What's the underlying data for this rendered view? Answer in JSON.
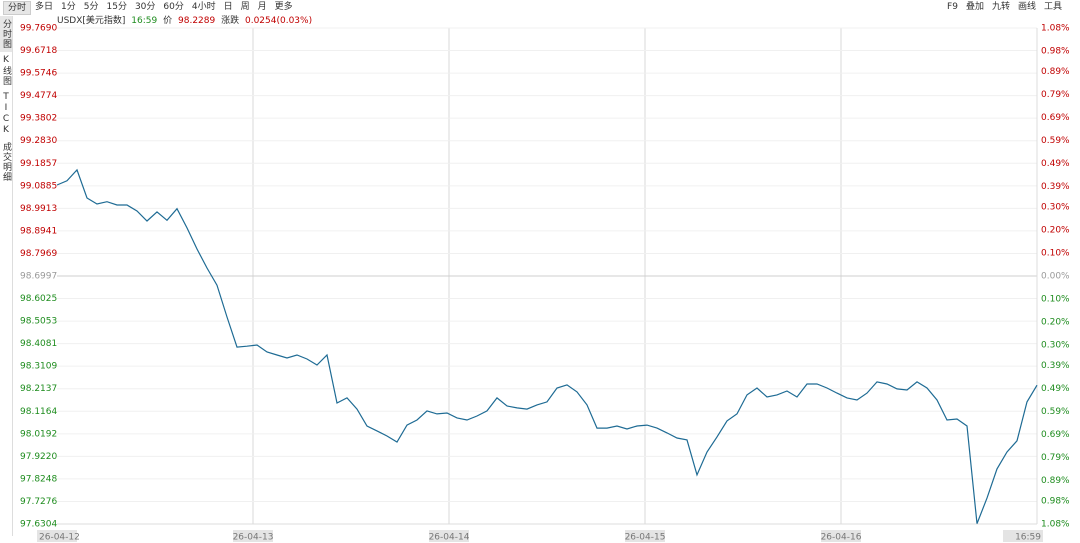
{
  "toolbar": {
    "left": [
      "分时",
      "多日",
      "1分",
      "5分",
      "15分",
      "30分",
      "60分",
      "4小时",
      "日",
      "周",
      "月",
      "更多"
    ],
    "right": [
      "F9",
      "叠加",
      "九转",
      "画线",
      "工具"
    ]
  },
  "sidebar": [
    "分时图",
    "K线图",
    "TICK",
    "成交明细"
  ],
  "info": {
    "symbol": "USDX[美元指数]",
    "time": "16:59",
    "price_label": "价",
    "price": "98.2289",
    "change_label": "涨跌",
    "change": "0.0254(0.03%)"
  },
  "chart_data": {
    "type": "line",
    "xtick_labels": [
      "26-04-12",
      "26-04-13",
      "26-04-14",
      "26-04-15",
      "26-04-16",
      "16:59"
    ],
    "series": [
      {
        "color": "#1e6b94",
        "values": [
          99.092,
          99.11,
          99.157,
          99.036,
          99.01,
          99.02,
          99.006,
          99.006,
          98.98,
          98.937,
          98.976,
          98.94,
          98.99,
          98.907,
          98.816,
          98.734,
          98.66,
          98.523,
          98.393,
          98.397,
          98.402,
          98.372,
          98.359,
          98.346,
          98.359,
          98.342,
          98.316,
          98.359,
          98.152,
          98.174,
          98.126,
          98.053,
          98.032,
          98.01,
          97.984,
          98.057,
          98.079,
          98.118,
          98.105,
          98.109,
          98.088,
          98.079,
          98.096,
          98.118,
          98.174,
          98.139,
          98.131,
          98.126,
          98.144,
          98.157,
          98.217,
          98.23,
          98.2,
          98.144,
          98.044,
          98.044,
          98.053,
          98.04,
          98.053,
          98.057,
          98.044,
          98.023,
          98.001,
          97.993,
          97.842,
          97.941,
          98.006,
          98.075,
          98.105,
          98.187,
          98.217,
          98.178,
          98.187,
          98.204,
          98.178,
          98.234,
          98.234,
          98.217,
          98.195,
          98.174,
          98.165,
          98.195,
          98.243,
          98.234,
          98.213,
          98.208,
          98.243,
          98.217,
          98.165,
          98.079,
          98.083,
          98.053,
          97.632,
          97.742,
          97.868,
          97.941,
          97.989,
          98.157,
          98.229
        ]
      }
    ],
    "ylim": [
      97.6304,
      99.769
    ],
    "yticks": [
      {
        "value": 99.769,
        "label": "99.7690"
      },
      99.6718,
      99.5746,
      99.4774,
      99.3802,
      {
        "value": 99.283,
        "label": "99.2830"
      },
      99.1857,
      99.0885,
      98.9913,
      98.8941,
      98.7969,
      98.6997,
      98.6025,
      98.5053,
      98.4081,
      98.3109,
      98.2137,
      98.1164,
      98.0192,
      {
        "value": 97.922,
        "label": "97.9220"
      },
      97.8248,
      97.7276,
      97.6304
    ],
    "y2lim": [
      -1.08,
      1.08
    ],
    "y2ticks": [
      {
        "value": 1.08,
        "label": "1.08%"
      },
      {
        "value": 0.98,
        "label": "0.98%"
      },
      {
        "value": 0.89,
        "label": "0.89%"
      },
      {
        "value": 0.79,
        "label": "0.79%"
      },
      {
        "value": 0.69,
        "label": "0.69%"
      },
      {
        "value": 0.59,
        "label": "0.59%"
      },
      {
        "value": 0.49,
        "label": "0.49%"
      },
      {
        "value": 0.39,
        "label": "0.39%"
      },
      {
        "value": 0.3,
        "label": "0.30%"
      },
      {
        "value": 0.2,
        "label": "0.20%"
      },
      {
        "value": 0.1,
        "label": "0.10%"
      },
      {
        "value": 0,
        "label": "0.00%"
      },
      {
        "value": -0.1,
        "label": "0.10%"
      },
      {
        "value": -0.2,
        "label": "0.20%"
      },
      {
        "value": -0.3,
        "label": "0.30%"
      },
      {
        "value": -0.39,
        "label": "0.39%"
      },
      {
        "value": -0.49,
        "label": "0.49%"
      },
      {
        "value": -0.59,
        "label": "0.59%"
      },
      {
        "value": -0.69,
        "label": "0.69%"
      },
      {
        "value": -0.79,
        "label": "0.79%"
      },
      {
        "value": -0.89,
        "label": "0.89%"
      },
      {
        "value": -0.98,
        "label": "0.98%"
      },
      {
        "value": -1.08,
        "label": "1.08%"
      }
    ],
    "grid": true,
    "up_color": "#c00000",
    "down_color": "#1e8c1e",
    "flat_color": "#9a9a9a"
  }
}
